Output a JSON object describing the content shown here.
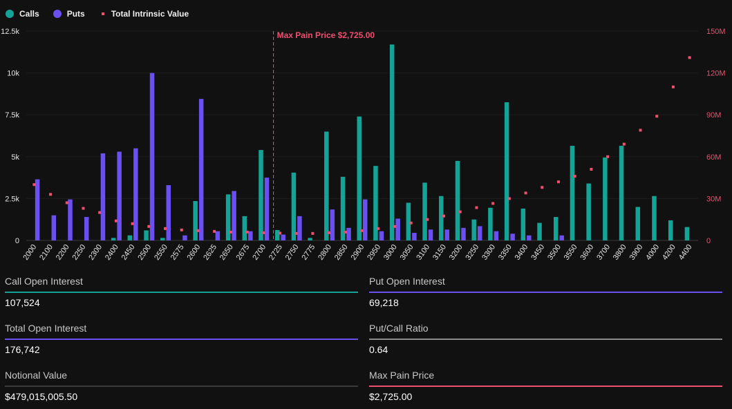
{
  "legend": {
    "calls_label": "Calls",
    "puts_label": "Puts",
    "intrinsic_label": "Total Intrinsic Value"
  },
  "colors": {
    "calls": "#14a396",
    "puts": "#6b4ff0",
    "intrinsic": "#f0506e",
    "max_pain": "#f0506e",
    "axis_text": "#e6e6e6",
    "right_axis_text": "#f0506e",
    "grid": "#1c1c1c"
  },
  "chart_data": {
    "type": "bar",
    "categories": [
      "2000",
      "2100",
      "2200",
      "2250",
      "2300",
      "2400",
      "2450",
      "2500",
      "2550",
      "2575",
      "2600",
      "2625",
      "2650",
      "2675",
      "2700",
      "2725",
      "2750",
      "2775",
      "2800",
      "2850",
      "2900",
      "2950",
      "3000",
      "3050",
      "3100",
      "3150",
      "3200",
      "3250",
      "3300",
      "3350",
      "3400",
      "3450",
      "3500",
      "3550",
      "3600",
      "3700",
      "3800",
      "3900",
      "4000",
      "4200",
      "4400"
    ],
    "series": [
      {
        "name": "Calls",
        "axis": "left",
        "values": [
          0,
          0,
          0,
          0,
          0,
          150,
          300,
          600,
          150,
          0,
          2350,
          0,
          2750,
          1450,
          5400,
          620,
          4050,
          150,
          6500,
          3800,
          7400,
          4450,
          11700,
          2250,
          3450,
          2650,
          4750,
          1250,
          1950,
          8250,
          1900,
          1050,
          1400,
          5650,
          3400,
          4950,
          5650,
          2000,
          2650,
          1200,
          800
        ]
      },
      {
        "name": "Puts",
        "axis": "left",
        "values": [
          3650,
          1500,
          2450,
          1400,
          5200,
          5300,
          5500,
          10000,
          3300,
          300,
          8450,
          550,
          2950,
          550,
          3750,
          350,
          1450,
          0,
          1850,
          750,
          2450,
          550,
          1300,
          450,
          650,
          650,
          750,
          850,
          550,
          400,
          300,
          0,
          300,
          0,
          0,
          0,
          0,
          0,
          0,
          0,
          0
        ]
      },
      {
        "name": "Total Intrinsic Value",
        "axis": "right",
        "type": "scatter",
        "values": [
          40000000,
          33000000,
          27000000,
          23000000,
          20000000,
          14000000,
          12000000,
          10000000,
          8500000,
          7500000,
          7000000,
          6500000,
          6000000,
          6000000,
          5500000,
          5200000,
          5000000,
          5000000,
          5500000,
          6000000,
          7000000,
          8500000,
          10000000,
          12500000,
          15000000,
          17500000,
          20500000,
          23500000,
          26500000,
          30000000,
          34000000,
          38000000,
          42000000,
          46000000,
          51000000,
          60000000,
          69000000,
          79000000,
          89000000,
          110000000,
          131000000
        ]
      }
    ],
    "ylim": [
      0,
      12500
    ],
    "y_ticks": [
      "0",
      "2.5k",
      "5k",
      "7.5k",
      "10k",
      "12.5k"
    ],
    "y2lim": [
      0,
      150000000
    ],
    "y2_ticks": [
      "0",
      "30M",
      "60M",
      "90M",
      "120M",
      "150M"
    ],
    "max_pain": {
      "strike": "2725",
      "label": "Max Pain Price $2,725.00"
    },
    "legend_position": "top-left"
  },
  "stats": {
    "call_oi": {
      "label": "Call Open Interest",
      "value": "107,524"
    },
    "put_oi": {
      "label": "Put Open Interest",
      "value": "69,218"
    },
    "total_oi": {
      "label": "Total Open Interest",
      "value": "176,742"
    },
    "put_call_ratio": {
      "label": "Put/Call Ratio",
      "value": "0.64"
    },
    "notional": {
      "label": "Notional Value",
      "value": "$479,015,005.50"
    },
    "max_pain_price": {
      "label": "Max Pain Price",
      "value": "$2,725.00"
    }
  }
}
